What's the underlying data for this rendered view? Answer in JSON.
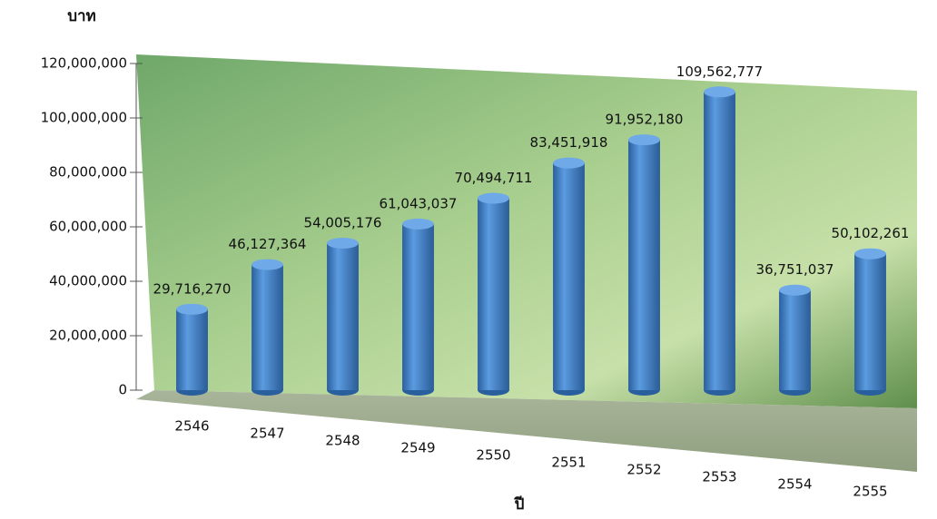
{
  "chart_data": {
    "type": "bar",
    "y_axis_label": "บาท",
    "x_axis_label": "ปี",
    "categories": [
      "2546",
      "2547",
      "2548",
      "2549",
      "2550",
      "2551",
      "2552",
      "2553",
      "2554",
      "2555"
    ],
    "values": [
      29716270,
      46127364,
      54005176,
      61043037,
      70494711,
      83451918,
      91952180,
      109562777,
      36751037,
      50102261
    ],
    "value_labels": [
      "29,716,270",
      "46,127,364",
      "54,005,176",
      "61,043,037",
      "70,494,711",
      "83,451,918",
      "91,952,180",
      "109,562,777",
      "36,751,037",
      "50,102,261"
    ],
    "color": "#3d7fc9",
    "ylim": [
      0,
      120000000
    ],
    "yticks": [
      0,
      {
        "value": 20000000,
        "label": "20,000,000"
      },
      {
        "value": 40000000,
        "label": "40,000,000"
      },
      {
        "value": 60000000,
        "label": "60,000,000"
      },
      {
        "value": 80000000,
        "label": "80,000,000"
      },
      {
        "value": 100000000,
        "label": "100,000,000"
      },
      {
        "value": 120000000,
        "label": "120,000,000"
      }
    ]
  }
}
